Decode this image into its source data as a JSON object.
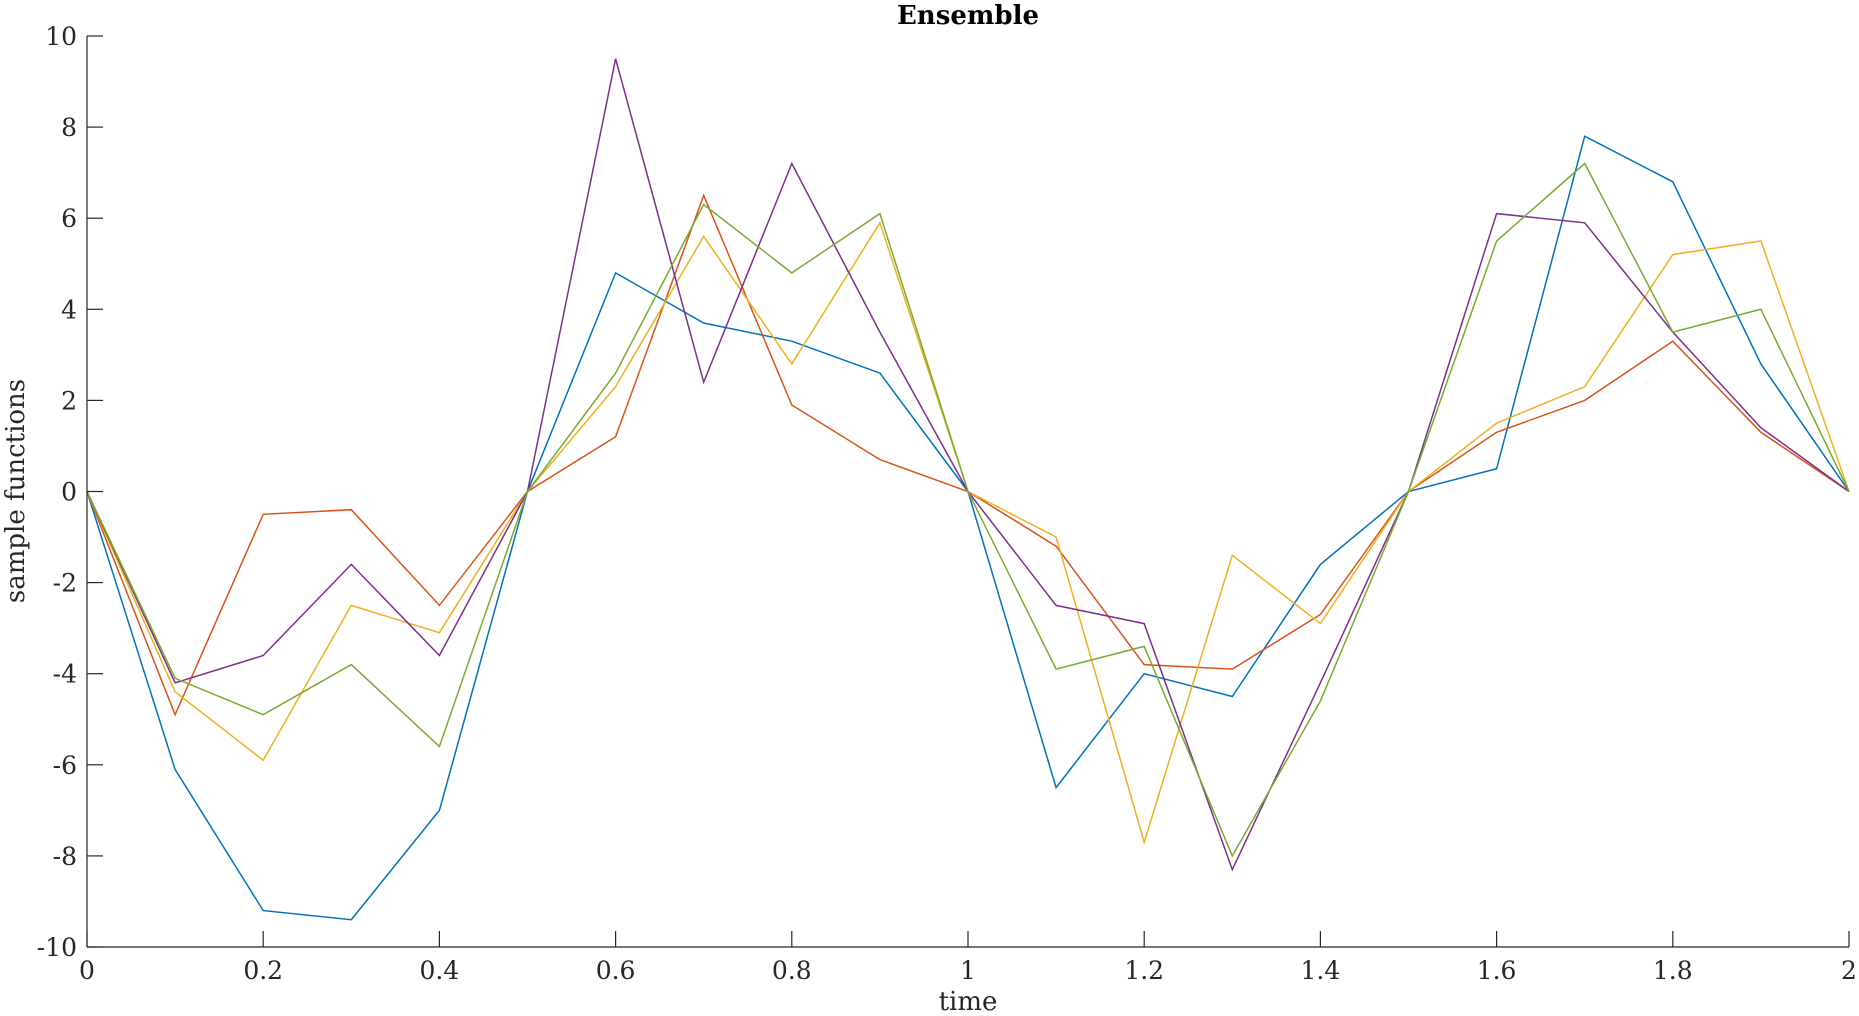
{
  "chart_data": {
    "type": "line",
    "title": "Ensemble",
    "xlabel": "time",
    "ylabel": "sample functions",
    "xlim": [
      0,
      2
    ],
    "ylim": [
      -10,
      10
    ],
    "xticks": [
      0,
      0.2,
      0.4,
      0.6,
      0.8,
      1,
      1.2,
      1.4,
      1.6,
      1.8,
      2
    ],
    "xtick_labels": [
      "0",
      "0.2",
      "0.4",
      "0.6",
      "0.8",
      "1",
      "1.2",
      "1.4",
      "1.6",
      "1.8",
      "2"
    ],
    "yticks": [
      -10,
      -8,
      -6,
      -4,
      -2,
      0,
      2,
      4,
      6,
      8,
      10
    ],
    "ytick_labels": [
      "-10",
      "-8",
      "-6",
      "-4",
      "-2",
      "0",
      "2",
      "4",
      "6",
      "8",
      "10"
    ],
    "grid": false,
    "legend": "none",
    "x": [
      0,
      0.1,
      0.2,
      0.3,
      0.4,
      0.5,
      0.6,
      0.7,
      0.8,
      0.9,
      1.0,
      1.1,
      1.2,
      1.3,
      1.4,
      1.5,
      1.6,
      1.7,
      1.8,
      1.9,
      2.0
    ],
    "series": [
      {
        "color": "#0072BD",
        "values": [
          0,
          -6.1,
          -9.2,
          -9.4,
          -7.0,
          0,
          4.8,
          3.7,
          3.3,
          2.6,
          0,
          -6.5,
          -4.0,
          -4.5,
          -1.6,
          0,
          0.5,
          7.8,
          6.8,
          2.8,
          0
        ]
      },
      {
        "color": "#D95319",
        "values": [
          0,
          -4.9,
          -0.5,
          -0.4,
          -2.5,
          0,
          1.2,
          6.5,
          1.9,
          0.7,
          0,
          -1.2,
          -3.8,
          -3.9,
          -2.7,
          0,
          1.3,
          2.0,
          3.3,
          1.3,
          0
        ]
      },
      {
        "color": "#EDB120",
        "values": [
          0,
          -4.4,
          -5.9,
          -2.5,
          -3.1,
          0,
          2.3,
          5.6,
          2.8,
          5.9,
          0,
          -1.0,
          -7.7,
          -1.4,
          -2.9,
          0,
          1.5,
          2.3,
          5.2,
          5.5,
          0
        ]
      },
      {
        "color": "#7E2F8E",
        "values": [
          0,
          -4.2,
          -3.6,
          -1.6,
          -3.6,
          0,
          9.5,
          2.4,
          7.2,
          3.5,
          0,
          -2.5,
          -2.9,
          -8.3,
          -4.2,
          0,
          6.1,
          5.9,
          3.5,
          1.4,
          0
        ]
      },
      {
        "color": "#77AC30",
        "values": [
          0,
          -4.1,
          -4.9,
          -3.8,
          -5.6,
          0,
          2.6,
          6.3,
          4.8,
          6.1,
          0,
          -3.9,
          -3.4,
          -8.0,
          -4.6,
          0,
          5.5,
          7.2,
          3.5,
          4.0,
          0
        ]
      }
    ]
  }
}
